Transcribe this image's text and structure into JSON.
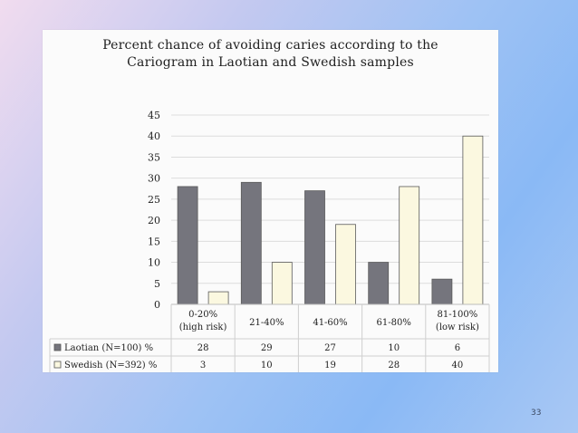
{
  "slide": {
    "page_number": "33"
  },
  "chart_data": {
    "type": "bar",
    "title_lines": [
      "Percent chance of avoiding caries according to the",
      "Cariogram in Laotian and Swedish samples"
    ],
    "categories": [
      [
        "0-20%",
        "(high risk)"
      ],
      [
        "21-40%"
      ],
      [
        "41-60%"
      ],
      [
        "61-80%"
      ],
      [
        "81-100%",
        "(low risk)"
      ]
    ],
    "series": [
      {
        "name": "Laotian (N=100) %",
        "values": [
          28,
          29,
          27,
          10,
          6
        ],
        "color": "#75757d"
      },
      {
        "name": "Swedish (N=392) %",
        "values": [
          3,
          10,
          19,
          28,
          40
        ],
        "color": "#fbf8e0"
      }
    ],
    "ylim": [
      0,
      45
    ],
    "yticks": [
      0,
      5,
      10,
      15,
      20,
      25,
      30,
      35,
      40,
      45
    ],
    "xlabel": "",
    "ylabel": "",
    "grid": true,
    "legend": "data-table"
  }
}
